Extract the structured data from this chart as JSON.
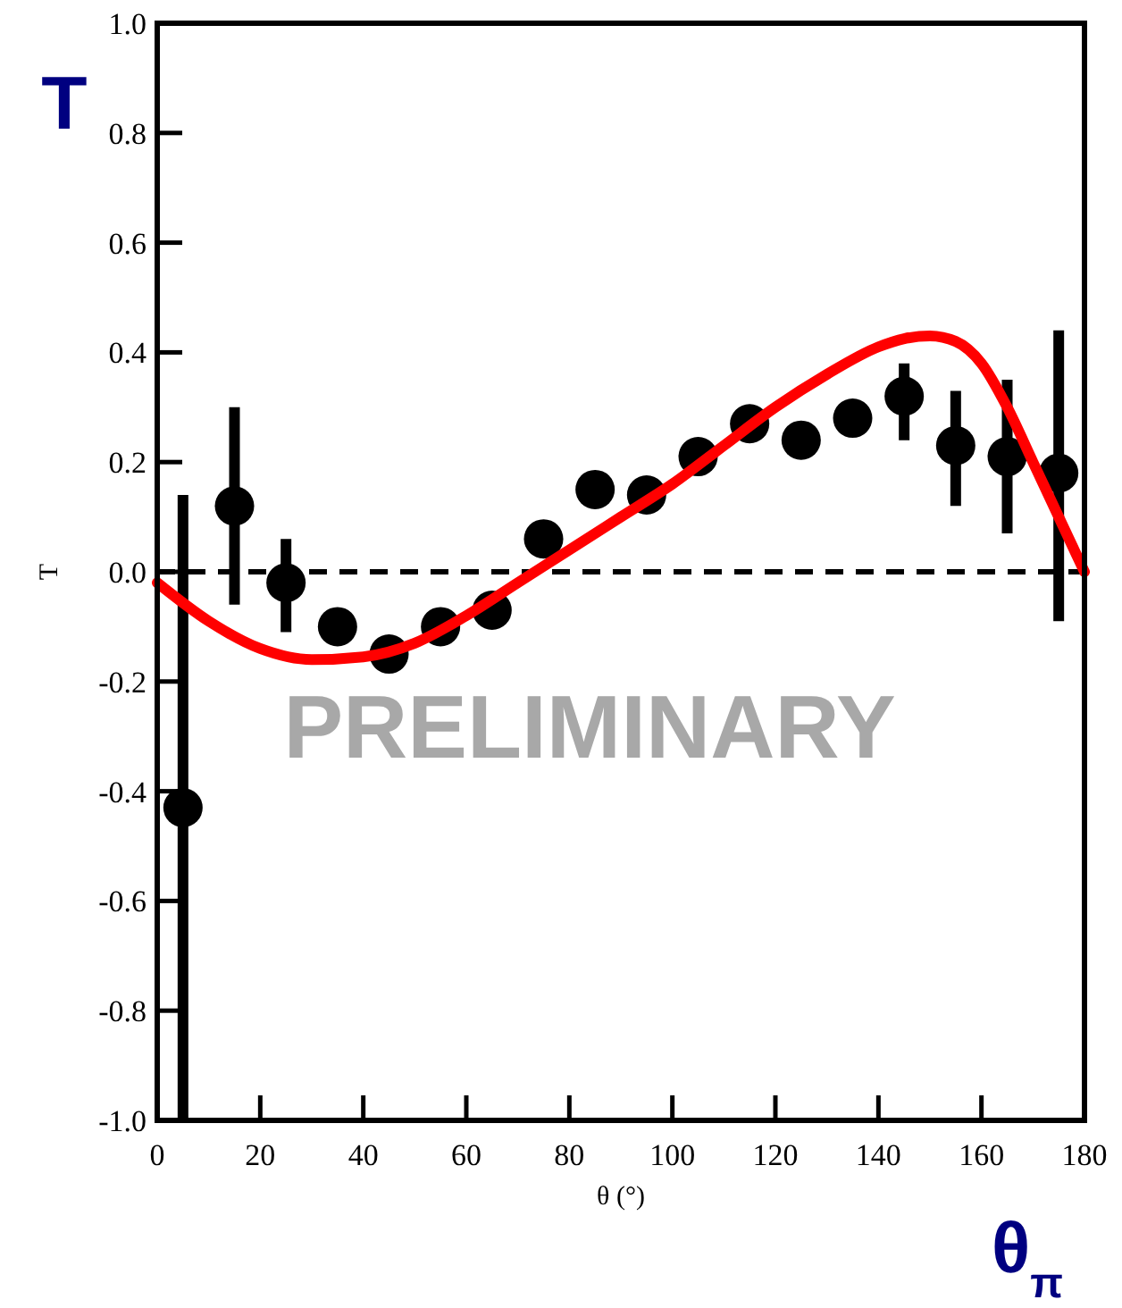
{
  "chart_data": {
    "type": "scatter",
    "xlabel": "θ (°)",
    "ylabel": "T",
    "xlim": [
      0,
      180
    ],
    "xticks": [
      0,
      20,
      40,
      60,
      80,
      100,
      120,
      140,
      160,
      180
    ],
    "ylim": [
      -1,
      1
    ],
    "yticks": [
      {
        "value": -1,
        "label": "-1.0"
      },
      {
        "value": -0.8,
        "label": "-0.8"
      },
      {
        "value": -0.6,
        "label": "-0.6"
      },
      {
        "value": -0.4,
        "label": "-0.4"
      },
      {
        "value": -0.2,
        "label": "-0.2"
      },
      {
        "value": 0,
        "label": "0.0"
      },
      {
        "value": 0.2,
        "label": "0.2"
      },
      {
        "value": 0.4,
        "label": "0.4"
      },
      {
        "value": 0.6,
        "label": "0.6"
      },
      {
        "value": 0.8,
        "label": "0.8"
      },
      {
        "value": 1,
        "label": "1.0"
      }
    ],
    "grid": false,
    "series": [
      {
        "color": "#000000",
        "marker": "circle",
        "x": [
          5,
          15,
          25,
          35,
          45,
          55,
          65,
          75,
          85,
          95,
          105,
          115,
          125,
          135,
          145,
          155,
          165,
          175
        ],
        "values": [
          -0.43,
          0.12,
          -0.02,
          -0.1,
          -0.15,
          -0.1,
          -0.07,
          0.06,
          0.15,
          0.14,
          0.21,
          0.27,
          0.24,
          0.28,
          0.32,
          0.23,
          0.21,
          0.18
        ],
        "errors": [
          [
            -1,
            0.14
          ],
          [
            -0.06,
            0.3
          ],
          [
            -0.11,
            0.06
          ],
          null,
          null,
          null,
          null,
          null,
          null,
          null,
          null,
          null,
          null,
          null,
          [
            0.24,
            0.38
          ],
          [
            0.12,
            0.33
          ],
          [
            0.07,
            0.35
          ],
          [
            -0.09,
            0.44
          ]
        ]
      },
      {
        "type": "line",
        "color": "#ff0000",
        "marker": "none",
        "line_style": "solid",
        "x": [
          0,
          10,
          20,
          30,
          40,
          50,
          60,
          70,
          80,
          90,
          100,
          110,
          120,
          130,
          140,
          145,
          150,
          155,
          160,
          165,
          170,
          175,
          180
        ],
        "values": [
          -0.02,
          -0.09,
          -0.14,
          -0.16,
          -0.155,
          -0.13,
          -0.08,
          -0.02,
          0.04,
          0.1,
          0.16,
          0.23,
          0.3,
          0.36,
          0.41,
          0.425,
          0.43,
          0.42,
          0.38,
          0.3,
          0.2,
          0.1,
          0.0
        ]
      }
    ],
    "ref_lines": [
      {
        "axis": "y",
        "value": 0,
        "color": "#000000",
        "line_style": "dashed"
      }
    ],
    "annotations": [
      "T",
      "θ$_{π}$",
      "PRELIMINARY"
    ]
  }
}
